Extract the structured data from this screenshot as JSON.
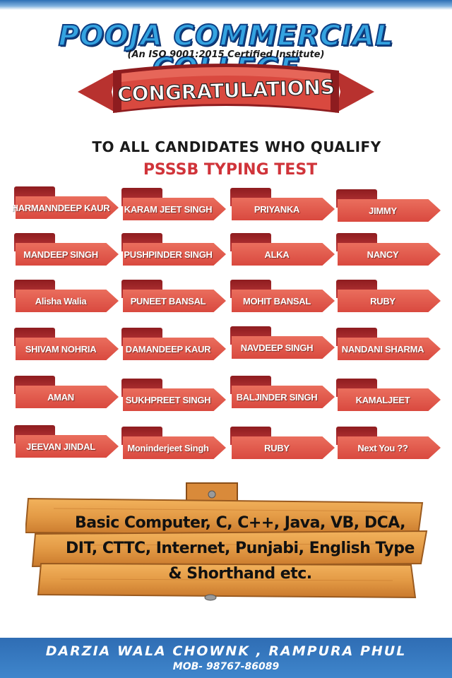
{
  "header": {
    "college_name": "POOJA COMMERCIAL COLLEGE",
    "certification": "(An ISO 9001:2015 Certified Institute)"
  },
  "banner": {
    "congratulations": "CONGRATULATIONS"
  },
  "headline": {
    "qualify_text": "TO ALL CANDIDATES WHO QUALIFY",
    "test_name": "PSSSB TYPING TEST"
  },
  "candidates": [
    [
      "HARMANNDEEP  KAUR",
      "KARAM JEET SINGH",
      "PRIYANKA",
      "JIMMY"
    ],
    [
      "MANDEEP SINGH",
      "PUSHPINDER SINGH",
      "ALKA",
      "NANCY"
    ],
    [
      "Alisha Walia",
      "PUNEET BANSAL",
      "MOHIT BANSAL",
      "RUBY"
    ],
    [
      "SHIVAM NOHRIA",
      "DAMANDEEP KAUR",
      "NAVDEEP SINGH",
      "NANDANI SHARMA"
    ],
    [
      "AMAN",
      "SUKHPREET SINGH",
      "BALJINDER SINGH",
      "KAMALJEET"
    ],
    [
      "JEEVAN JINDAL",
      "Moninderjeet Singh",
      "RUBY",
      "Next  You ??"
    ]
  ],
  "courses": {
    "line1": "Basic Computer, C, C++, Java, VB, DCA,",
    "line2": "DIT, CTTC, Internet, Punjabi, English Type",
    "line3": "& Shorthand etc."
  },
  "footer": {
    "address": "DARZIA WALA CHOWNK , RAMPURA PHUL",
    "mobile": "MOB- 98767-86089"
  },
  "colors": {
    "title_blue": "#34a3e0",
    "ribbon_red": "#d9493f",
    "test_name_red": "#d0343a",
    "board_wood": "#e39a45",
    "footer_blue": "#3f86cc"
  }
}
